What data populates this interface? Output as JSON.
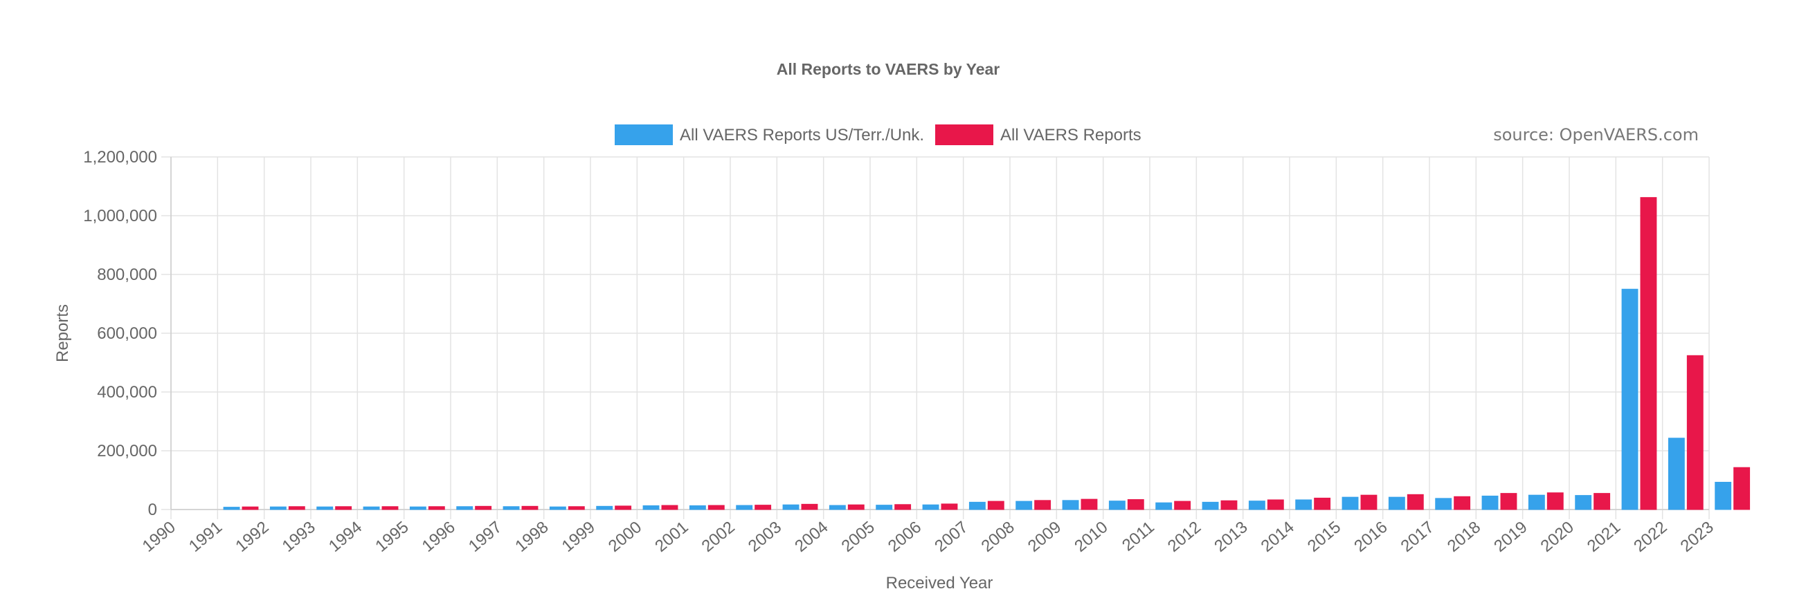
{
  "chart_data": {
    "type": "bar",
    "title": "All Reports to VAERS by Year",
    "xlabel": "Received Year",
    "ylabel": "Reports",
    "source": "source: OpenVAERS.com",
    "ylim": [
      0,
      1200000
    ],
    "yticks": [
      0,
      200000,
      400000,
      600000,
      800000,
      1000000,
      1200000
    ],
    "ytick_labels": [
      "0",
      "200,000",
      "400,000",
      "600,000",
      "800,000",
      "1,000,000",
      "1,200,000"
    ],
    "grid": true,
    "legend_position": "top-center",
    "categories": [
      "1990",
      "1991",
      "1992",
      "1993",
      "1994",
      "1995",
      "1996",
      "1997",
      "1998",
      "1999",
      "2000",
      "2001",
      "2002",
      "2003",
      "2004",
      "2005",
      "2006",
      "2007",
      "2008",
      "2009",
      "2010",
      "2011",
      "2012",
      "2013",
      "2014",
      "2015",
      "2016",
      "2017",
      "2018",
      "2019",
      "2020",
      "2021",
      "2022",
      "2023"
    ],
    "series": [
      {
        "name": "All VAERS Reports US/Terr./Unk.",
        "color": "#36a2eb",
        "values": [
          0,
          8000,
          9000,
          9000,
          9000,
          9000,
          10000,
          10000,
          9000,
          11000,
          13000,
          13000,
          14000,
          16000,
          14000,
          15000,
          16000,
          25000,
          28000,
          31000,
          29000,
          23000,
          25000,
          29000,
          33000,
          42000,
          42000,
          38000,
          46000,
          49000,
          48000,
          750000,
          243000,
          93000
        ]
      },
      {
        "name": "All VAERS Reports",
        "color": "#e8174a",
        "values": [
          0,
          9000,
          10000,
          10000,
          10000,
          10000,
          11000,
          11000,
          10000,
          12000,
          14000,
          14000,
          15000,
          18000,
          16000,
          17000,
          19000,
          28000,
          31000,
          35000,
          34000,
          28000,
          30000,
          33000,
          39000,
          49000,
          51000,
          44000,
          55000,
          57000,
          55000,
          1062000,
          524000,
          143000
        ]
      }
    ]
  }
}
